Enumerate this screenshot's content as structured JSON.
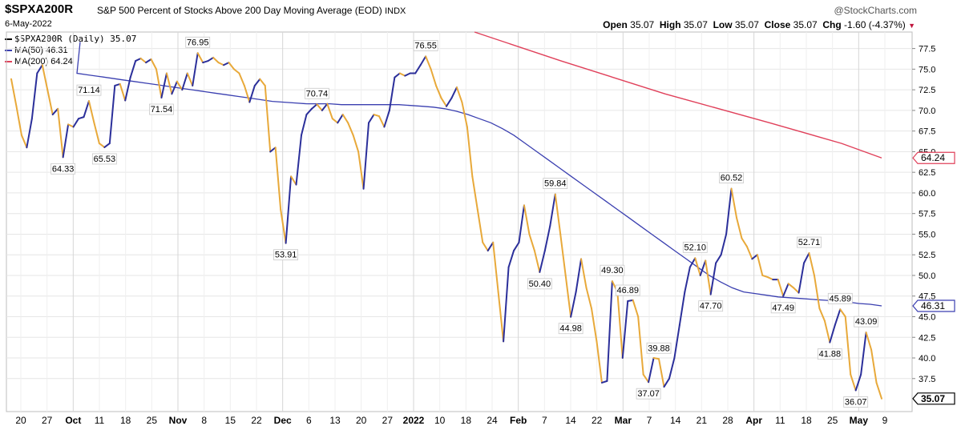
{
  "header": {
    "symbol": "$SPXA200R",
    "description": "S&P 500 Percent of Stocks Above 200 Day Moving Average (EOD)",
    "exchange": "INDX",
    "brand": "@StockCharts.com",
    "date": "6-May-2022",
    "open_label": "Open",
    "open": "35.07",
    "high_label": "High",
    "high": "35.07",
    "low_label": "Low",
    "low": "35.07",
    "close_label": "Close",
    "close": "35.07",
    "chg_label": "Chg",
    "chg": "-1.60 (-4.37%)",
    "chg_arrow": "▼"
  },
  "legend": {
    "main": "$SPXA200R (Daily) 35.07",
    "ma50": "MA(50) 46.31",
    "ma200": "MA(200) 64.24"
  },
  "colors": {
    "up": "#2b2f9a",
    "down": "#e8a93a",
    "ma50": "#3a3fb0",
    "ma200": "#e0405a",
    "grid": "#e6e6e6"
  },
  "chart_data": {
    "type": "line",
    "ylim": [
      33.5,
      79.5
    ],
    "y_ticks": [
      37.5,
      40.0,
      42.5,
      45.0,
      47.5,
      50.0,
      52.5,
      55.0,
      57.5,
      60.0,
      62.5,
      65.0,
      67.5,
      70.0,
      72.5,
      75.0,
      77.5
    ],
    "x_labels": [
      {
        "label": "20",
        "bold": false
      },
      {
        "label": "27",
        "bold": false
      },
      {
        "label": "Oct",
        "bold": true
      },
      {
        "label": "11",
        "bold": false
      },
      {
        "label": "18",
        "bold": false
      },
      {
        "label": "25",
        "bold": false
      },
      {
        "label": "Nov",
        "bold": true
      },
      {
        "label": "8",
        "bold": false
      },
      {
        "label": "15",
        "bold": false
      },
      {
        "label": "22",
        "bold": false
      },
      {
        "label": "Dec",
        "bold": true
      },
      {
        "label": "6",
        "bold": false
      },
      {
        "label": "13",
        "bold": false
      },
      {
        "label": "20",
        "bold": false
      },
      {
        "label": "27",
        "bold": false
      },
      {
        "label": "2022",
        "bold": true
      },
      {
        "label": "10",
        "bold": false
      },
      {
        "label": "18",
        "bold": false
      },
      {
        "label": "24",
        "bold": false
      },
      {
        "label": "Feb",
        "bold": true
      },
      {
        "label": "7",
        "bold": false
      },
      {
        "label": "14",
        "bold": false
      },
      {
        "label": "22",
        "bold": false
      },
      {
        "label": "Mar",
        "bold": true
      },
      {
        "label": "7",
        "bold": false
      },
      {
        "label": "14",
        "bold": false
      },
      {
        "label": "21",
        "bold": false
      },
      {
        "label": "28",
        "bold": false
      },
      {
        "label": "Apr",
        "bold": true
      },
      {
        "label": "11",
        "bold": false
      },
      {
        "label": "18",
        "bold": false
      },
      {
        "label": "25",
        "bold": false
      },
      {
        "label": "May",
        "bold": true
      },
      {
        "label": "9",
        "bold": false
      }
    ],
    "series": [
      {
        "name": "$SPXA200R (Daily)",
        "role": "price",
        "values": [
          73.8,
          70.5,
          67.0,
          65.5,
          69.0,
          74.5,
          75.5,
          72.5,
          69.5,
          70.2,
          64.33,
          68.3,
          68.0,
          69.0,
          69.2,
          71.14,
          68.5,
          66.0,
          65.53,
          66.0,
          73.0,
          73.2,
          71.2,
          74.0,
          76.0,
          76.3,
          75.8,
          76.2,
          75.0,
          71.54,
          74.5,
          72.0,
          73.5,
          72.5,
          74.5,
          73.0,
          76.95,
          75.8,
          76.0,
          76.4,
          75.8,
          75.5,
          75.8,
          75.0,
          74.5,
          73.0,
          71.0,
          73.0,
          73.8,
          73.0,
          65.0,
          65.5,
          58.0,
          53.91,
          62.0,
          61.0,
          67.0,
          69.5,
          70.2,
          70.74,
          70.0,
          70.8,
          69.0,
          68.5,
          69.5,
          68.5,
          67.0,
          65.0,
          60.5,
          68.5,
          69.5,
          69.3,
          68.0,
          70.0,
          74.0,
          74.5,
          74.2,
          74.5,
          74.5,
          75.5,
          76.55,
          75.0,
          73.0,
          71.5,
          70.5,
          71.5,
          72.8,
          71.0,
          68.0,
          62.0,
          58.0,
          54.0,
          53.0,
          54.0,
          48.0,
          42.0,
          51.0,
          53.0,
          54.0,
          58.5,
          55.0,
          53.0,
          50.4,
          53.0,
          56.0,
          59.84,
          55.0,
          50.0,
          44.98,
          48.0,
          52.0,
          48.5,
          46.0,
          42.0,
          37.0,
          37.2,
          49.3,
          48.0,
          40.0,
          46.89,
          47.0,
          45.0,
          38.0,
          37.07,
          40.0,
          39.88,
          36.5,
          37.5,
          40.0,
          44.0,
          48.0,
          51.0,
          52.1,
          50.0,
          51.8,
          47.7,
          51.5,
          52.5,
          55.0,
          60.52,
          57.0,
          54.5,
          53.5,
          52.0,
          52.5,
          50.0,
          49.8,
          49.5,
          49.5,
          47.49,
          49.0,
          48.5,
          47.9,
          51.5,
          52.71,
          50.0,
          46.0,
          44.5,
          41.88,
          44.0,
          45.89,
          45.0,
          38.0,
          36.07,
          38.0,
          43.09,
          41.0,
          37.0,
          35.07
        ]
      },
      {
        "name": "MA(50)",
        "role": "ma50",
        "start_index": 14,
        "values": [
          74.5,
          74.3,
          74.1,
          73.9,
          73.7,
          73.5,
          73.3,
          73.1,
          72.9,
          72.7,
          72.5,
          72.3,
          72.1,
          71.9,
          71.7,
          71.5,
          71.3,
          71.1,
          71.0,
          70.9,
          70.8,
          70.8,
          70.8,
          70.7,
          70.7,
          70.7,
          70.7,
          70.7,
          70.7,
          70.6,
          70.5,
          70.4,
          70.2,
          69.9,
          69.5,
          69.0,
          68.5,
          67.8,
          67.0,
          66.0,
          65.0,
          64.0,
          63.0,
          62.0,
          61.0,
          60.0,
          59.0,
          58.0,
          57.0,
          56.0,
          55.0,
          54.0,
          53.0,
          52.0,
          51.0,
          50.0,
          49.2,
          48.5,
          48.0,
          47.8,
          47.6,
          47.4,
          47.3,
          47.2,
          47.1,
          47.0,
          46.9,
          46.8,
          46.6,
          46.5,
          46.31
        ],
        "x_positions": "spread"
      },
      {
        "name": "MA(200)",
        "role": "ma200",
        "values": [
          79.5,
          76.0,
          72.0,
          68.5,
          66.0,
          64.24
        ]
      }
    ],
    "data_labels": [
      {
        "text": "64.33",
        "index": 10,
        "pos": "below"
      },
      {
        "text": "71.14",
        "index": 15,
        "pos": "above"
      },
      {
        "text": "65.53",
        "index": 18,
        "pos": "below"
      },
      {
        "text": "71.54",
        "index": 29,
        "pos": "below"
      },
      {
        "text": "76.95",
        "index": 36,
        "pos": "above"
      },
      {
        "text": "53.91",
        "index": 53,
        "pos": "below"
      },
      {
        "text": "70.74",
        "index": 59,
        "pos": "above"
      },
      {
        "text": "76.55",
        "index": 80,
        "pos": "above"
      },
      {
        "text": "59.84",
        "index": 105,
        "pos": "above"
      },
      {
        "text": "50.40",
        "index": 102,
        "pos": "below"
      },
      {
        "text": "44.98",
        "index": 108,
        "pos": "below"
      },
      {
        "text": "49.30",
        "index": 116,
        "pos": "above"
      },
      {
        "text": "46.89",
        "index": 119,
        "pos": "above"
      },
      {
        "text": "39.88",
        "index": 125,
        "pos": "above"
      },
      {
        "text": "37.07",
        "index": 123,
        "pos": "below"
      },
      {
        "text": "52.10",
        "index": 132,
        "pos": "above"
      },
      {
        "text": "47.70",
        "index": 135,
        "pos": "below"
      },
      {
        "text": "60.52",
        "index": 139,
        "pos": "above"
      },
      {
        "text": "47.49",
        "index": 149,
        "pos": "below"
      },
      {
        "text": "52.71",
        "index": 154,
        "pos": "above"
      },
      {
        "text": "41.88",
        "index": 158,
        "pos": "below"
      },
      {
        "text": "45.89",
        "index": 160,
        "pos": "above"
      },
      {
        "text": "43.09",
        "index": 165,
        "pos": "above"
      },
      {
        "text": "36.07",
        "index": 163,
        "pos": "below"
      }
    ],
    "right_tags": [
      {
        "text": "64.24",
        "value": 64.24,
        "color": "#e0405a"
      },
      {
        "text": "46.31",
        "value": 46.31,
        "color": "#3a3fb0"
      },
      {
        "text": "35.07",
        "value": 35.07,
        "color": "#000000"
      }
    ]
  }
}
